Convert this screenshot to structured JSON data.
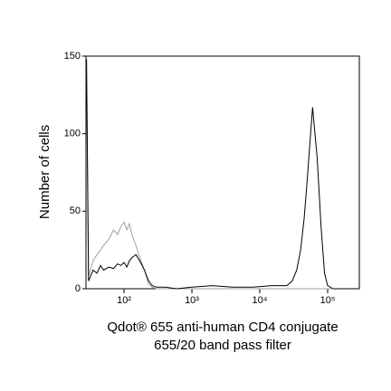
{
  "chart_data": {
    "type": "line",
    "x_label": [
      "Qdot® 655 anti-human CD4 conjugate",
      "655/20 band pass filter"
    ],
    "y_label": "Number of cells",
    "x": [
      28,
      30,
      35,
      40,
      45,
      50,
      60,
      70,
      80,
      90,
      100,
      110,
      120,
      130,
      150,
      170,
      200,
      230,
      260,
      300,
      400,
      600,
      1000,
      2000,
      4000,
      8000,
      15000,
      25000,
      30000,
      35000,
      40000,
      45000,
      50000,
      55000,
      60000,
      65000,
      70000,
      80000,
      90000,
      100000,
      120000
    ],
    "series": [
      {
        "color": "#a0a0a0",
        "values": [
          148,
          8,
          18,
          22,
          25,
          28,
          32,
          38,
          35,
          40,
          43,
          38,
          42,
          35,
          28,
          20,
          12,
          3,
          1,
          0,
          0,
          0,
          0,
          0,
          0,
          0,
          0,
          0,
          0,
          0,
          0,
          0,
          0,
          0,
          0,
          0,
          0,
          0,
          0,
          0,
          0
        ]
      },
      {
        "color": "#000000",
        "values": [
          148,
          5,
          12,
          10,
          15,
          12,
          14,
          13,
          16,
          15,
          17,
          14,
          18,
          20,
          22,
          18,
          12,
          5,
          2,
          1,
          1,
          0,
          1,
          2,
          1,
          1,
          2,
          2,
          5,
          12,
          25,
          45,
          70,
          95,
          117,
          100,
          85,
          40,
          10,
          2,
          0
        ]
      }
    ],
    "xlog": true,
    "xlim": [
      27.5,
      293000
    ],
    "xticks": [
      {
        "value": 100,
        "label": "10²"
      },
      {
        "value": 1000,
        "label": "10³"
      },
      {
        "value": 10000,
        "label": "10⁴"
      },
      {
        "value": 100000,
        "label": "10⁵"
      }
    ],
    "ylim": [
      0,
      150
    ],
    "yticks": [
      0,
      50,
      100,
      150
    ]
  }
}
